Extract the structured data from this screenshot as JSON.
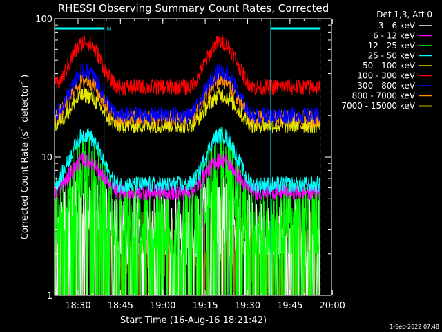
{
  "chart_data": {
    "type": "line",
    "title": "RHESSI Observing Summary Count Rates, Corrected",
    "xlabel": "Start Time (16-Aug-16 18:21:42)",
    "ylabel_main": "Corrected Count Rate (s",
    "ylabel_sup1": "-1",
    "ylabel_mid": " detector",
    "ylabel_sup2": "-1",
    "ylabel_end": ")",
    "yscale": "log",
    "ylim": [
      1,
      100
    ],
    "ytick_labels": [
      "1",
      "10",
      "100"
    ],
    "xlim_minutes": [
      0,
      98
    ],
    "xtick_labels": [
      "18:30",
      "18:45",
      "19:00",
      "19:15",
      "19:30",
      "19:45",
      "20:00"
    ],
    "xtick_minutes": [
      8.3,
      23.3,
      38.3,
      53.3,
      68.3,
      83.3,
      98.3
    ],
    "legend_header": "Det 1,3, Att 0",
    "legend_placement": "top-right outside",
    "attenuator_flag": "N",
    "attenuator_intervals_minutes": [
      [
        0,
        17.5
      ],
      [
        76.5,
        94
      ]
    ],
    "data_gap_lines_minutes": [
      17.5,
      76.5,
      94
    ],
    "series": [
      {
        "name": "3 - 6 keV",
        "color": "#ffffff",
        "base": 3.0,
        "peak": 4.2
      },
      {
        "name": "6 - 12 keV",
        "color": "#ff00ff",
        "base": 5.6,
        "peak": 9.5
      },
      {
        "name": "12 - 25 keV",
        "color": "#00ff00",
        "base": 3.6,
        "peak": 9.0
      },
      {
        "name": "25 - 50 keV",
        "color": "#00ffff",
        "base": 6.3,
        "peak": 14.5
      },
      {
        "name": "50 - 100 keV",
        "color": "#e6e600",
        "base": 17.0,
        "peak": 28.0
      },
      {
        "name": "100 - 300 keV",
        "color": "#ff0000",
        "base": 32.0,
        "peak": 68.0
      },
      {
        "name": "300 - 800 keV",
        "color": "#0000ff",
        "base": 20.0,
        "peak": 42.0
      },
      {
        "name": "800 - 7000 keV",
        "color": "#ff8c00",
        "base": 19.0,
        "peak": 36.0
      },
      {
        "name": "7000 - 15000 keV",
        "color": "#808000",
        "base": 2.2,
        "peak": 3.2
      }
    ]
  },
  "footer": {
    "timestamp": "1-Sep-2022 07:48"
  }
}
